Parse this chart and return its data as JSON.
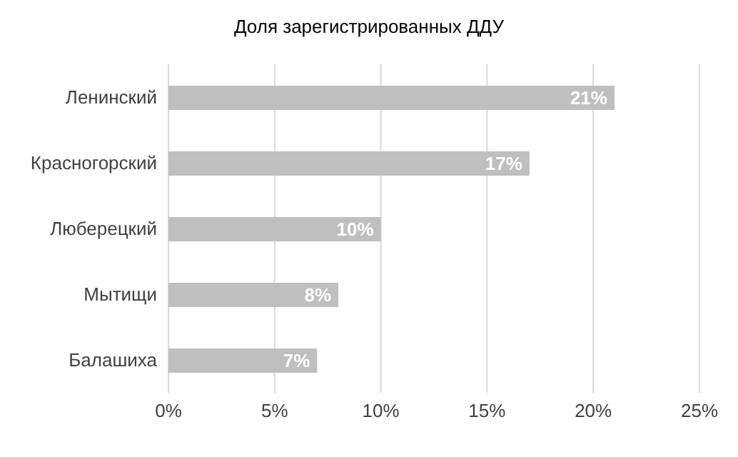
{
  "chart_data": {
    "type": "bar",
    "orientation": "horizontal",
    "title": "Доля зарегистрированных ДДУ",
    "categories": [
      "Ленинский",
      "Красногорский",
      "Люберецкий",
      "Мытищи",
      "Балашиха"
    ],
    "values": [
      21,
      17,
      10,
      8,
      7
    ],
    "value_labels": [
      "21%",
      "17%",
      "10%",
      "8%",
      "7%"
    ],
    "color": "#bfbfbf",
    "xlim": [
      0,
      25
    ],
    "xticks": [
      {
        "value": 0,
        "label": "0%"
      },
      {
        "value": 5,
        "label": "5%"
      },
      {
        "value": 10,
        "label": "10%"
      },
      {
        "value": 15,
        "label": "15%"
      },
      {
        "value": 20,
        "label": "20%"
      },
      {
        "value": 25,
        "label": "25%"
      }
    ],
    "grid": "x",
    "legend": false
  }
}
